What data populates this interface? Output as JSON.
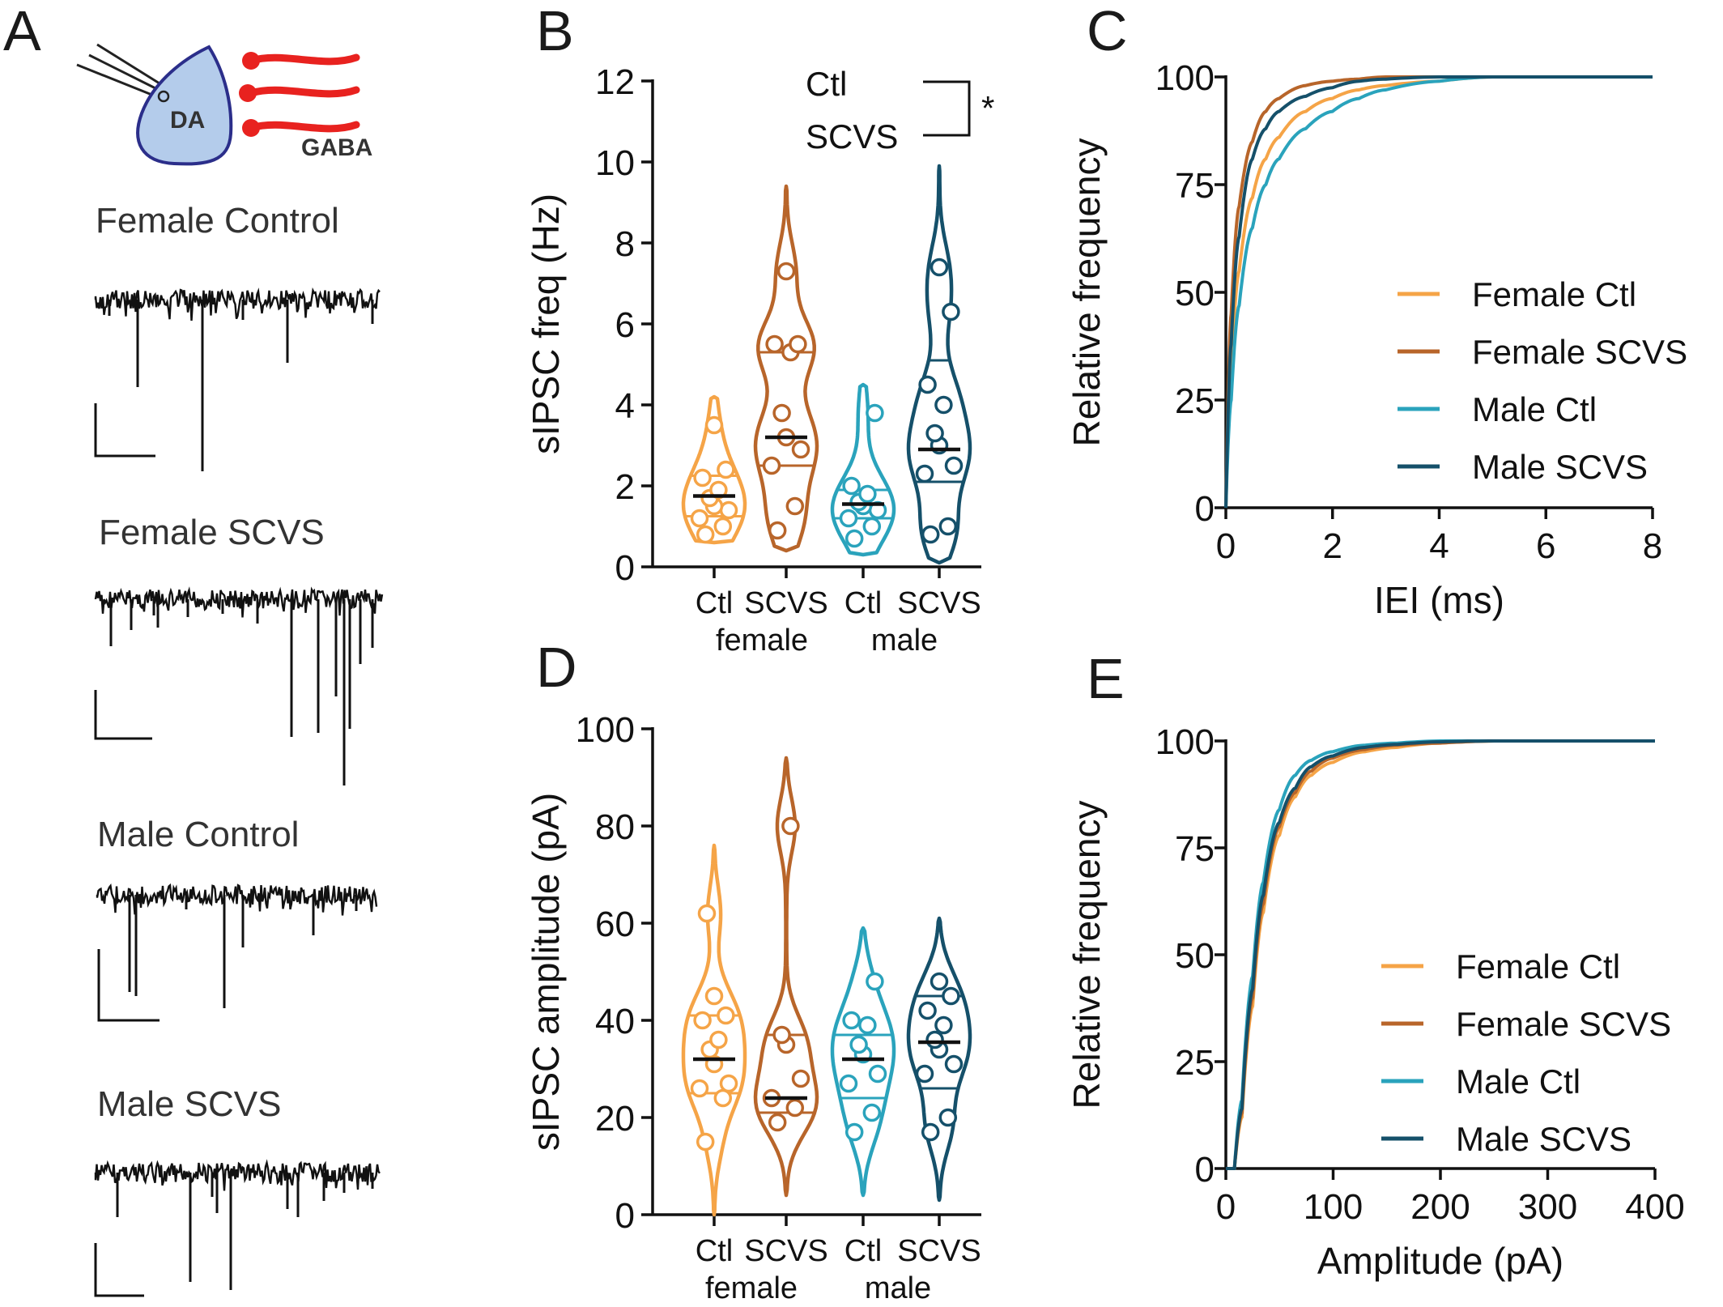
{
  "figure": {
    "panel_letters": [
      "A",
      "B",
      "C",
      "D",
      "E"
    ],
    "schematic": {
      "cell_label": "DA",
      "input_label": "GABA",
      "cell_fill": "#b4cceb",
      "cell_stroke": "#2b2e8a",
      "input_color": "#e8221f"
    },
    "traces": [
      {
        "title": "Female Control"
      },
      {
        "title": "Female SCVS"
      },
      {
        "title": "Male Control"
      },
      {
        "title": "Male SCVS"
      }
    ],
    "colors": {
      "female_ctl": "#f5a447",
      "female_scvs": "#b8652a",
      "male_ctl": "#2aa3bc",
      "male_scvs": "#15506a"
    }
  },
  "chart_data": [
    {
      "panel": "B",
      "type": "violin",
      "ylabel": "sIPSC freq (Hz)",
      "ylim": [
        0,
        12
      ],
      "yticks": [
        0,
        2,
        4,
        6,
        8,
        10,
        12
      ],
      "categories": [
        "Ctl",
        "SCVS",
        "Ctl",
        "SCVS"
      ],
      "group_labels": [
        "female",
        "male"
      ],
      "significance": {
        "labels": [
          "Ctl",
          "SCVS"
        ],
        "mark": "*"
      },
      "series": [
        {
          "median": 1.75,
          "q1": 1.25,
          "q3": 2.25,
          "min": 0.6,
          "max": 4.2,
          "points": [
            0.8,
            1.0,
            1.2,
            1.4,
            1.5,
            1.7,
            1.9,
            2.2,
            2.4,
            3.5
          ],
          "color": "#f5a447"
        },
        {
          "median": 3.2,
          "q1": 2.5,
          "q3": 5.3,
          "min": 0.4,
          "max": 9.4,
          "points": [
            0.9,
            1.5,
            2.5,
            2.9,
            3.2,
            3.8,
            5.3,
            5.5,
            5.5,
            7.3
          ],
          "color": "#b8652a"
        },
        {
          "median": 1.55,
          "q1": 1.2,
          "q3": 1.9,
          "min": 0.3,
          "max": 4.5,
          "points": [
            0.7,
            1.0,
            1.2,
            1.4,
            1.5,
            1.6,
            1.8,
            2.0,
            3.8
          ],
          "color": "#2aa3bc"
        },
        {
          "median": 2.9,
          "q1": 2.1,
          "q3": 5.1,
          "min": 0.1,
          "max": 9.9,
          "points": [
            0.8,
            1.0,
            2.3,
            2.5,
            3.0,
            3.3,
            4.0,
            4.5,
            6.3,
            7.4
          ],
          "color": "#15506a"
        }
      ]
    },
    {
      "panel": "C",
      "type": "line",
      "title": "",
      "xlabel": "IEI (ms)",
      "ylabel": "Relative frequency",
      "xlim": [
        0,
        8
      ],
      "ylim": [
        0,
        100
      ],
      "xticks": [
        0,
        2,
        4,
        6,
        8
      ],
      "yticks": [
        0,
        25,
        50,
        75,
        100
      ],
      "legend_position": "center-right",
      "series": [
        {
          "name": "Female Ctl",
          "color": "#f5a447",
          "x": [
            0,
            0.1,
            0.25,
            0.5,
            0.75,
            1.0,
            1.5,
            2.0,
            2.5,
            3.0,
            4.0,
            5.0,
            8.0
          ],
          "y": [
            0,
            32,
            55,
            72,
            81,
            86,
            92,
            95,
            97,
            98,
            99,
            100,
            100
          ]
        },
        {
          "name": "Female SCVS",
          "color": "#b8652a",
          "x": [
            0,
            0.1,
            0.25,
            0.5,
            0.75,
            1.0,
            1.5,
            2.0,
            2.5,
            3.0,
            4.0,
            5.0,
            8.0
          ],
          "y": [
            0,
            45,
            70,
            85,
            92,
            95,
            98,
            99,
            99.5,
            100,
            100,
            100,
            100
          ]
        },
        {
          "name": "Male Ctl",
          "color": "#2aa3bc",
          "x": [
            0,
            0.1,
            0.25,
            0.5,
            0.75,
            1.0,
            1.5,
            2.0,
            2.5,
            3.0,
            4.0,
            5.0,
            8.0
          ],
          "y": [
            0,
            25,
            47,
            65,
            75,
            81,
            88,
            92,
            95,
            97,
            99,
            100,
            100
          ]
        },
        {
          "name": "Male SCVS",
          "color": "#15506a",
          "x": [
            0,
            0.1,
            0.25,
            0.5,
            0.75,
            1.0,
            1.5,
            2.0,
            2.5,
            3.0,
            4.0,
            5.0,
            8.0
          ],
          "y": [
            0,
            38,
            63,
            81,
            88,
            92,
            95.5,
            97.5,
            99,
            99.5,
            100,
            100,
            100
          ]
        }
      ]
    },
    {
      "panel": "D",
      "type": "violin",
      "ylabel": "sIPSC amplitude (pA)",
      "ylim": [
        0,
        100
      ],
      "yticks": [
        0,
        20,
        40,
        60,
        80,
        100
      ],
      "categories": [
        "Ctl",
        "SCVS",
        "Ctl",
        "SCVS"
      ],
      "group_labels": [
        "female",
        "male"
      ],
      "series": [
        {
          "median": 32,
          "q1": 25,
          "q3": 41,
          "min": 0,
          "max": 76,
          "points": [
            15,
            24,
            26,
            27,
            31,
            34,
            36,
            40,
            41,
            45,
            62
          ],
          "color": "#f5a447"
        },
        {
          "median": 24,
          "q1": 21,
          "q3": 37,
          "min": 4,
          "max": 94,
          "points": [
            19,
            22,
            24,
            28,
            35,
            37,
            80
          ],
          "color": "#b8652a"
        },
        {
          "median": 32,
          "q1": 24,
          "q3": 37,
          "min": 4,
          "max": 59,
          "points": [
            17,
            21,
            27,
            29,
            33,
            35,
            39,
            40,
            48
          ],
          "color": "#2aa3bc"
        },
        {
          "median": 35.5,
          "q1": 26,
          "q3": 45,
          "min": 3,
          "max": 61,
          "points": [
            17,
            20,
            29,
            31,
            34,
            36,
            39,
            42,
            45,
            48
          ],
          "color": "#15506a"
        }
      ]
    },
    {
      "panel": "E",
      "type": "line",
      "title": "",
      "xlabel": "Amplitude (pA)",
      "ylabel": "Relative frequency",
      "xlim": [
        0,
        400
      ],
      "ylim": [
        0,
        100
      ],
      "xticks": [
        0,
        100,
        200,
        300,
        400
      ],
      "yticks": [
        0,
        25,
        50,
        75,
        100
      ],
      "legend_position": "bottom-right",
      "series": [
        {
          "name": "Female Ctl",
          "color": "#f5a447",
          "x": [
            0,
            8,
            15,
            25,
            35,
            50,
            65,
            80,
            100,
            130,
            160,
            200,
            250,
            400
          ],
          "y": [
            0,
            0,
            12,
            38,
            60,
            78,
            87,
            92,
            95,
            97.5,
            98.5,
            99.5,
            100,
            100
          ]
        },
        {
          "name": "Female SCVS",
          "color": "#b8652a",
          "x": [
            0,
            8,
            15,
            25,
            35,
            50,
            65,
            80,
            100,
            130,
            160,
            200,
            250,
            400
          ],
          "y": [
            0,
            0,
            13,
            40,
            62,
            80,
            88,
            93,
            96,
            98,
            99,
            99.5,
            100,
            100
          ]
        },
        {
          "name": "Male Ctl",
          "color": "#2aa3bc",
          "x": [
            0,
            8,
            15,
            25,
            35,
            50,
            65,
            80,
            100,
            130,
            160,
            200,
            250,
            400
          ],
          "y": [
            0,
            0,
            16,
            45,
            67,
            84,
            92,
            95.5,
            97.5,
            99,
            99.5,
            100,
            100,
            100
          ]
        },
        {
          "name": "Male SCVS",
          "color": "#15506a",
          "x": [
            0,
            8,
            15,
            25,
            35,
            50,
            65,
            80,
            100,
            130,
            160,
            200,
            250,
            400
          ],
          "y": [
            0,
            0,
            14,
            42,
            64,
            81,
            89,
            94,
            96.5,
            98.5,
            99.2,
            99.8,
            100,
            100
          ]
        }
      ]
    }
  ]
}
